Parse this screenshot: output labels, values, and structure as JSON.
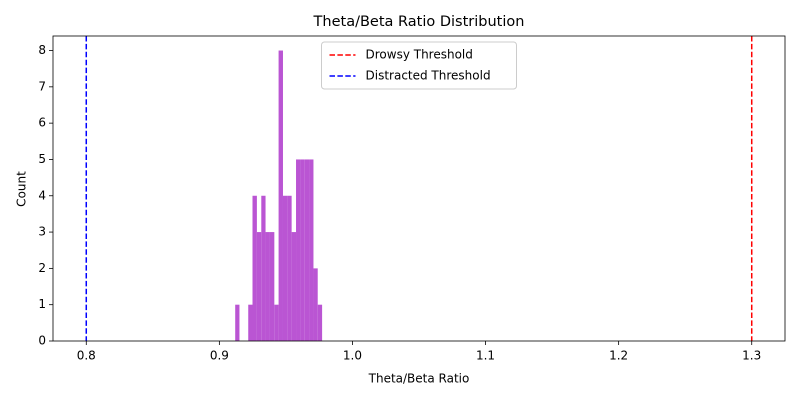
{
  "chart_data": {
    "type": "histogram",
    "title": "Theta/Beta Ratio Distribution",
    "x_label": "Theta/Beta Ratio",
    "y_label": "Count",
    "bins": [
      0.9119,
      0.9151,
      0.9184,
      0.9217,
      0.9249,
      0.9282,
      0.9315,
      0.9347,
      0.938,
      0.9413,
      0.9445,
      0.9478,
      0.9511,
      0.9543,
      0.9576,
      0.9609,
      0.9641,
      0.9674,
      0.9707,
      0.9739,
      0.9772
    ],
    "counts": [
      1,
      0,
      0,
      1,
      4,
      3,
      4,
      3,
      3,
      1,
      8,
      4,
      4,
      3,
      5,
      5,
      5,
      5,
      2,
      1
    ],
    "color": "#ba55d3",
    "reference_lines": [
      {
        "name": "Drowsy Threshold",
        "value": 1.3,
        "color": "#ff0000"
      },
      {
        "name": "Distracted Threshold",
        "value": 0.8,
        "color": "#0000ff"
      }
    ],
    "legend_position": "upper center",
    "xlim": [
      0.775,
      1.325
    ],
    "xticks": [
      0.8,
      0.9,
      {
        "value": 1.0,
        "label": "1.0"
      },
      1.1,
      1.2,
      1.3
    ],
    "ylim": [
      0,
      8.4
    ],
    "yticks": [
      0,
      1,
      2,
      3,
      4,
      5,
      6,
      7,
      8
    ]
  }
}
